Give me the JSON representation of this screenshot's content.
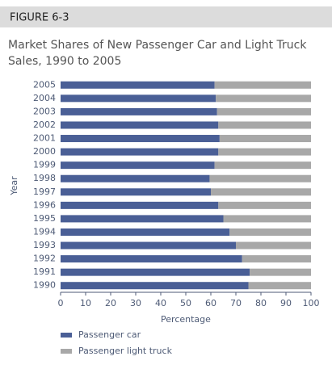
{
  "figure_label": "FIGURE 6-3",
  "chart_data": {
    "type": "stacked-barh",
    "title": "Market Shares of New Passenger Car and Light Truck",
    "subtitle": "Sales, 1990 to 2005",
    "y_label": "Year",
    "x_label": "Percentage",
    "categories": [
      "2005",
      "2004",
      "2003",
      "2002",
      "2001",
      "2000",
      "1999",
      "1998",
      "1997",
      "1996",
      "1995",
      "1994",
      "1993",
      "1992",
      "1991",
      "1990"
    ],
    "series": [
      {
        "name": "Passenger car",
        "color": "#4a5f96",
        "values": [
          61.5,
          62,
          62.5,
          63,
          63.5,
          63,
          61.5,
          59.5,
          60,
          63,
          65,
          67.5,
          70,
          72.5,
          75.5,
          75
        ]
      },
      {
        "name": "Passenger light truck",
        "color": "#a8a8a8",
        "values": [
          38.5,
          38,
          37.5,
          37,
          36.5,
          37,
          38.5,
          40.5,
          40,
          37,
          35,
          32.5,
          30,
          27.5,
          24.5,
          25
        ]
      }
    ],
    "xlim": [
      0,
      100
    ],
    "xticks": [
      0,
      10,
      20,
      30,
      40,
      50,
      60,
      70,
      80,
      90,
      100
    ]
  }
}
